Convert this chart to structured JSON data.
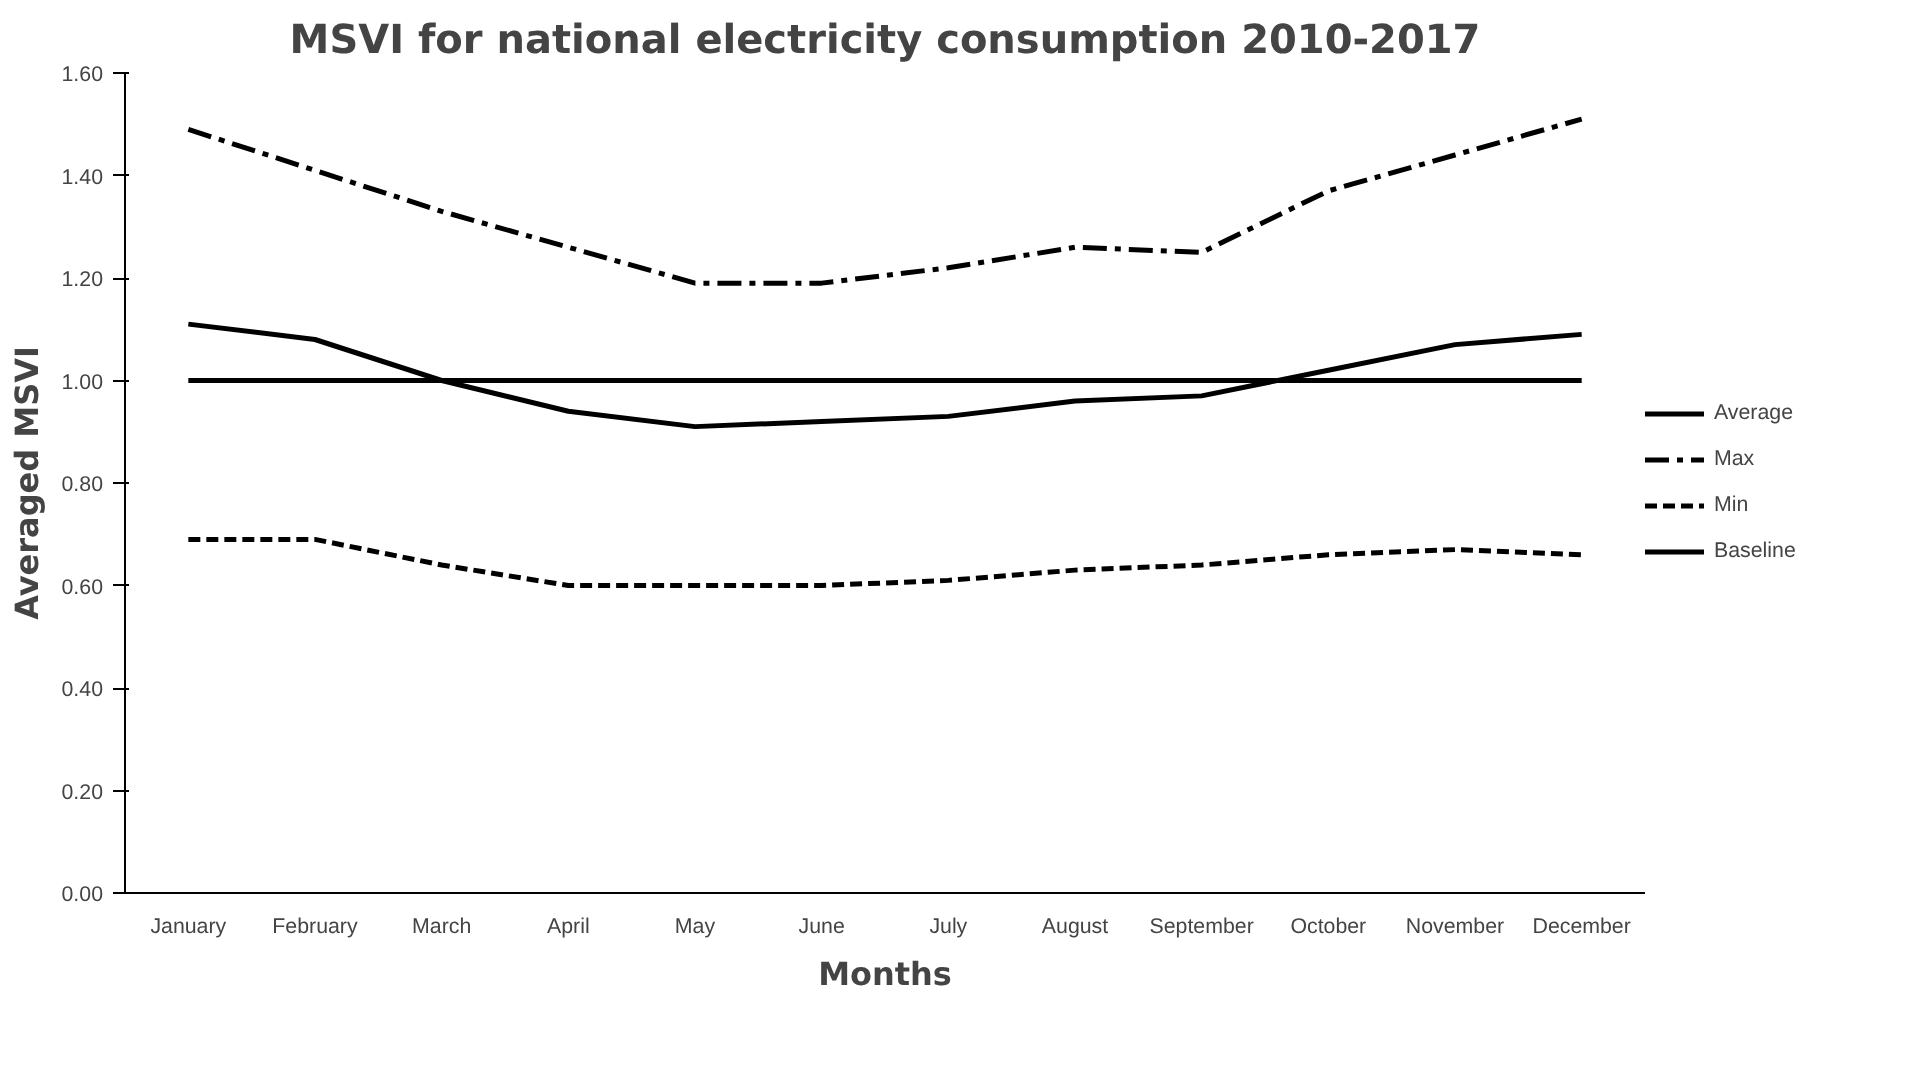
{
  "chart_data": {
    "type": "line",
    "title": "MSVI for national electricity consumption 2010-2017",
    "xlabel": "Months",
    "ylabel": "Averaged MSVI",
    "categories": [
      "January",
      "February",
      "March",
      "April",
      "May",
      "June",
      "July",
      "August",
      "September",
      "October",
      "November",
      "December"
    ],
    "series": [
      {
        "name": "Average",
        "color": "#000000",
        "line_style": "solid",
        "values": [
          1.11,
          1.08,
          1.0,
          0.94,
          0.91,
          0.92,
          0.93,
          0.96,
          0.97,
          1.02,
          1.07,
          1.09
        ]
      },
      {
        "name": "Max",
        "color": "#000000",
        "line_style": "dashdot",
        "values": [
          1.49,
          1.41,
          1.33,
          1.26,
          1.19,
          1.19,
          1.22,
          1.26,
          1.25,
          1.37,
          1.44,
          1.51
        ]
      },
      {
        "name": "Min",
        "color": "#000000",
        "line_style": "dashed",
        "values": [
          0.69,
          0.69,
          0.64,
          0.6,
          0.6,
          0.6,
          0.61,
          0.63,
          0.64,
          0.66,
          0.67,
          0.66
        ]
      },
      {
        "name": "Baseline",
        "color": "#000000",
        "line_style": "solid",
        "values": [
          1.0,
          1.0,
          1.0,
          1.0,
          1.0,
          1.0,
          1.0,
          1.0,
          1.0,
          1.0,
          1.0,
          1.0
        ]
      }
    ],
    "ylim": [
      0,
      1.6
    ],
    "yticks": [
      {
        "value": 0,
        "label": "0.00"
      },
      {
        "value": 0.2,
        "label": "0.20"
      },
      {
        "value": 0.4,
        "label": "0.40"
      },
      {
        "value": 0.6,
        "label": "0.60"
      },
      {
        "value": 0.8,
        "label": "0.80"
      },
      {
        "value": 1.0,
        "label": "1.00"
      },
      {
        "value": 1.2,
        "label": "1.20"
      },
      {
        "value": 1.4,
        "label": "1.40"
      },
      {
        "value": 1.6,
        "label": "1.60"
      }
    ],
    "grid": false,
    "legend": "right",
    "marker": "none"
  }
}
